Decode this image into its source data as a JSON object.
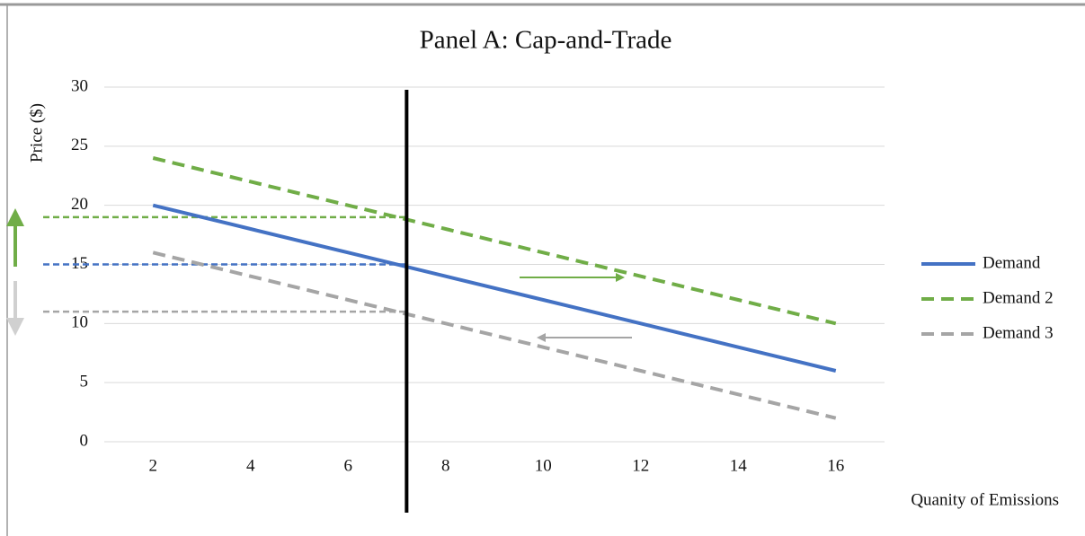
{
  "chart_data": {
    "type": "line",
    "title": "Panel A: Cap-and-Trade",
    "x_label": "Quanity of Emissions",
    "y_label": "Price ($)",
    "x": [
      2,
      4,
      6,
      8,
      10,
      12,
      14,
      16
    ],
    "series": [
      {
        "name": "Demand",
        "color": "#4472c4",
        "dash": false,
        "values": [
          20,
          18,
          16,
          14,
          12,
          10,
          8,
          6
        ]
      },
      {
        "name": "Demand 2",
        "color": "#70ad47",
        "dash": true,
        "values": [
          24,
          22,
          20,
          18,
          16,
          14,
          12,
          10
        ]
      },
      {
        "name": "Demand 3",
        "color": "#a5a5a5",
        "dash": true,
        "values": [
          16,
          14,
          12,
          10,
          8,
          6,
          4,
          2
        ]
      }
    ],
    "cap_quantity": 7.2,
    "price_lines": [
      {
        "value": 19,
        "color": "#70ad47"
      },
      {
        "value": 15,
        "color": "#4472c4"
      },
      {
        "value": 11,
        "color": "#a5a5a5"
      }
    ],
    "xlim": [
      1,
      17
    ],
    "xticks": [
      2,
      4,
      6,
      8,
      10,
      12,
      14,
      16
    ],
    "ylim": [
      0,
      30
    ],
    "yticks": [
      0,
      5,
      10,
      15,
      20,
      25,
      30
    ],
    "grid": true,
    "legend": "right"
  }
}
